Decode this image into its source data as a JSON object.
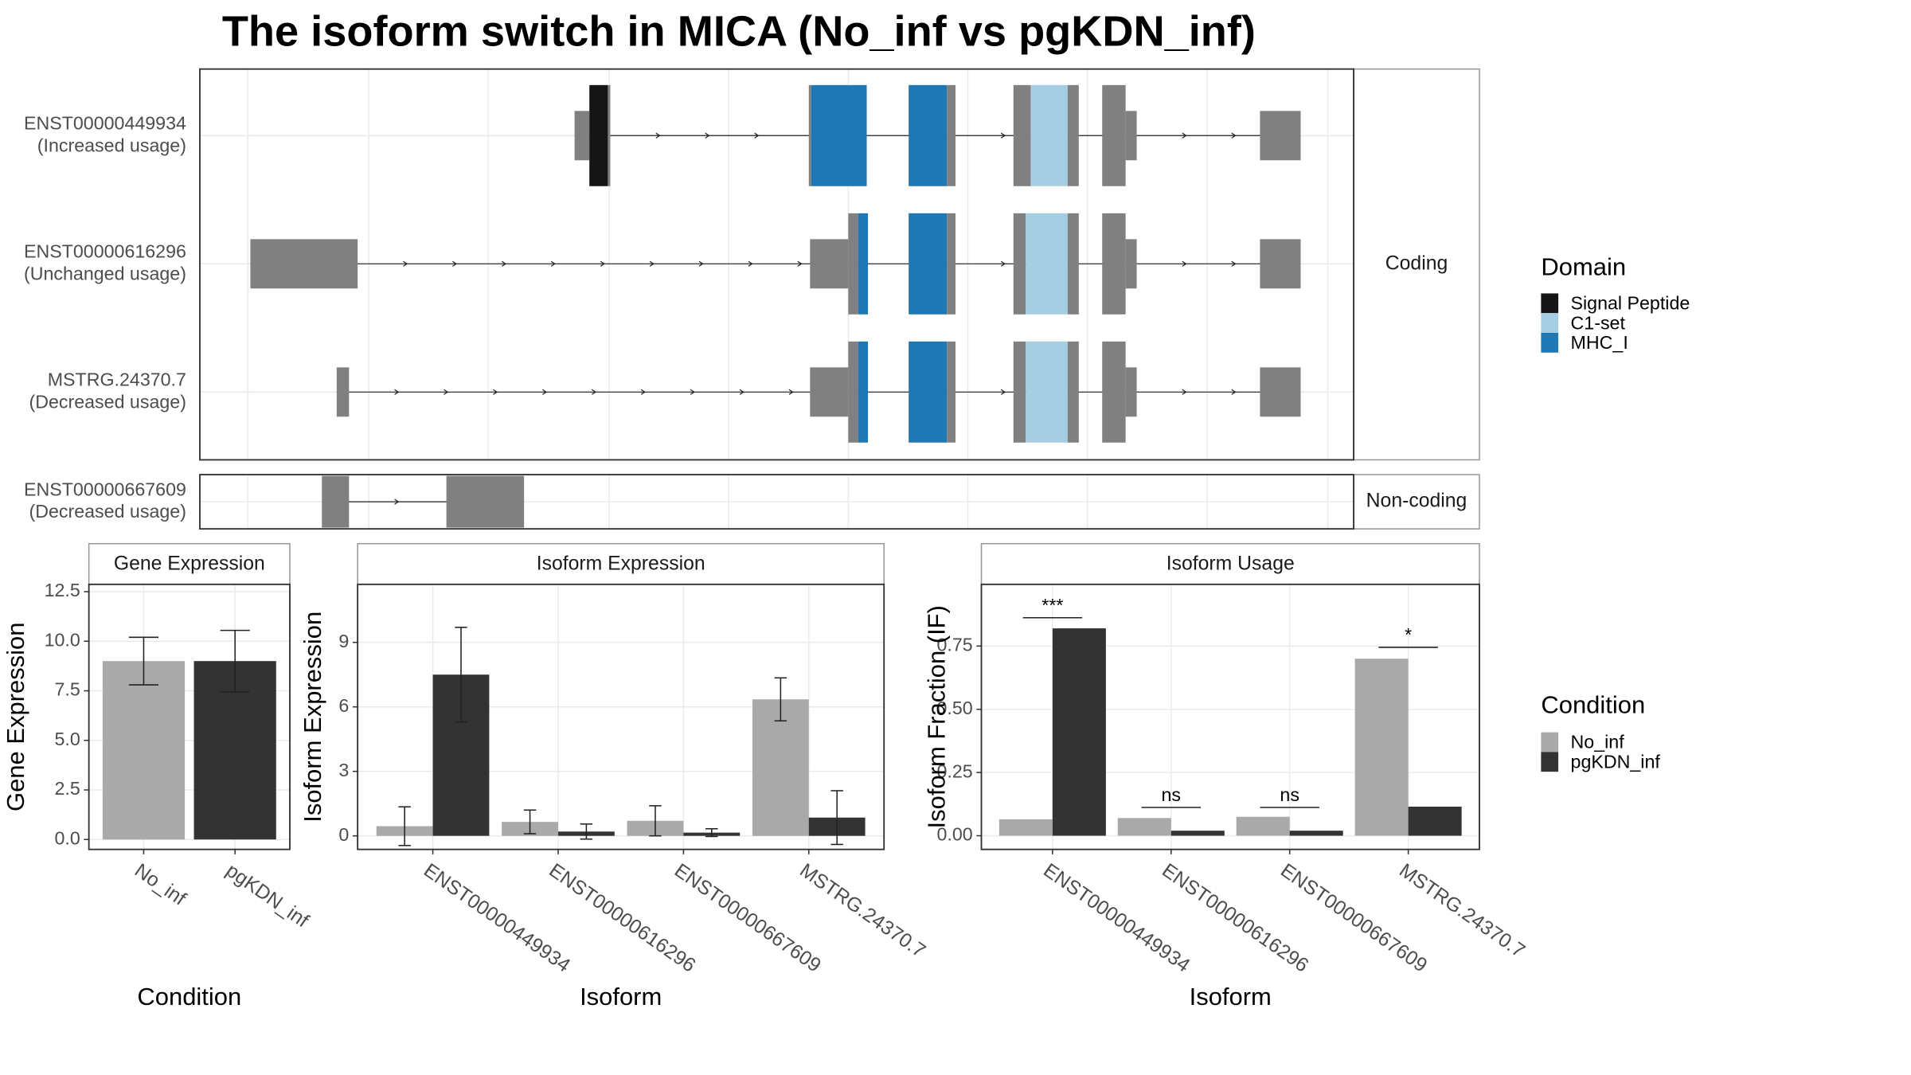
{
  "title": "The isoform switch in MICA (No_inf vs pgKDN_inf)",
  "chart_data": [
    {
      "type": "transcript-structure",
      "transcripts": [
        {
          "name": "ENST00000449934",
          "label": "(Increased usage)"
        },
        {
          "name": "ENST00000616296",
          "label": "(Unchanged usage)"
        },
        {
          "name": "MSTRG.24370.7",
          "label": "(Decreased usage)"
        },
        {
          "name": "ENST00000667609",
          "label": "(Decreased usage)"
        }
      ],
      "strips": [
        "Coding",
        "Non-coding"
      ],
      "legend_title": "Domain",
      "domains": [
        {
          "name": "Signal Peptide",
          "color": "#151515"
        },
        {
          "name": "C1-set",
          "color": "#a6cee3"
        },
        {
          "name": "MHC_I",
          "color": "#1f78b4"
        }
      ]
    },
    {
      "type": "bar",
      "strip": "Gene Expression",
      "xlabel": "Condition",
      "ylabel": "Gene Expression",
      "categories": [
        "No_inf",
        "pgKDN_inf"
      ],
      "values": [
        9.0,
        9.0
      ],
      "errors": [
        1.2,
        1.55
      ],
      "colors": [
        "#a9a9a9",
        "#333333"
      ],
      "ylim": [
        -0.5,
        12.87
      ],
      "yticks": [
        {
          "value": 0,
          "label": "0.0"
        },
        {
          "value": 2.5,
          "label": "2.5"
        },
        {
          "value": 5,
          "label": "5.0"
        },
        {
          "value": 7.5,
          "label": "7.5"
        },
        {
          "value": 10,
          "label": "10.0"
        },
        {
          "value": 12.5,
          "label": "12.5"
        }
      ]
    },
    {
      "type": "grouped-bar",
      "strip": "Isoform Expression",
      "xlabel": "Isoform",
      "ylabel": "Isoform Expression",
      "categories": [
        "ENST00000449934",
        "ENST00000616296",
        "ENST00000667609",
        "MSTRG.24370.7"
      ],
      "series": [
        {
          "name": "No_inf",
          "color": "#a9a9a9",
          "values": [
            0.45,
            0.65,
            0.7,
            6.35
          ],
          "errors": [
            0.9,
            0.55,
            0.7,
            1.0
          ]
        },
        {
          "name": "pgKDN_inf",
          "color": "#333333",
          "values": [
            7.5,
            0.2,
            0.15,
            0.85
          ],
          "errors": [
            2.2,
            0.35,
            0.18,
            1.25
          ]
        }
      ],
      "ylim": [
        -0.63,
        11.7
      ],
      "yticks": [
        0,
        3,
        6,
        9
      ]
    },
    {
      "type": "grouped-bar",
      "strip": "Isoform Usage",
      "xlabel": "Isoform",
      "ylabel": "Isoform Fraction (IF)",
      "categories": [
        "ENST00000449934",
        "ENST00000616296",
        "ENST00000667609",
        "MSTRG.24370.7"
      ],
      "series": [
        {
          "name": "No_inf",
          "color": "#a9a9a9",
          "values": [
            0.065,
            0.07,
            0.075,
            0.7
          ]
        },
        {
          "name": "pgKDN_inf",
          "color": "#333333",
          "values": [
            0.82,
            0.02,
            0.02,
            0.115
          ]
        }
      ],
      "ylim": [
        -0.054,
        0.994
      ],
      "yticks": [
        {
          "value": 0,
          "label": "0.00"
        },
        {
          "value": 0.25,
          "label": "0.25"
        },
        {
          "value": 0.5,
          "label": "0.50"
        },
        {
          "value": 0.75,
          "label": "0.75"
        }
      ],
      "annotations": [
        {
          "text": "***",
          "category": 0,
          "y": 0.862
        },
        {
          "text": "ns",
          "category": 1,
          "y": 0.112
        },
        {
          "text": "ns",
          "category": 2,
          "y": 0.112
        },
        {
          "text": "*",
          "category": 3,
          "y": 0.745
        }
      ],
      "legend_title": "Condition"
    }
  ]
}
